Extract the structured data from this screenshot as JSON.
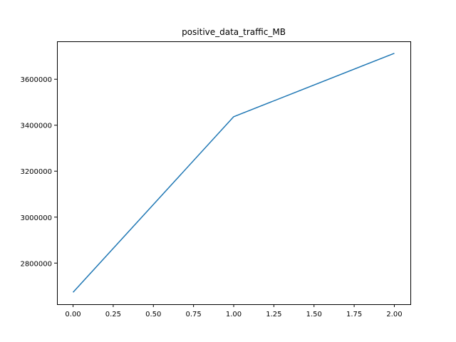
{
  "chart_data": {
    "type": "line",
    "title": "positive_data_traffic_MB",
    "xlabel": "",
    "ylabel": "",
    "x": [
      0,
      1,
      2
    ],
    "series": [
      {
        "values": [
          2673000,
          3437000,
          3713000
        ]
      }
    ],
    "xlim": [
      -0.1,
      2.1
    ],
    "ylim": [
      2621000,
      3765000
    ],
    "xticks": [
      "0.00",
      "0.25",
      "0.50",
      "0.75",
      "1.00",
      "1.25",
      "1.50",
      "1.75",
      "2.00"
    ],
    "yticks": [
      "2800000",
      "3000000",
      "3200000",
      "3400000",
      "3600000"
    ],
    "grid": false,
    "legend": "none",
    "line_color": "#1f77b4"
  }
}
